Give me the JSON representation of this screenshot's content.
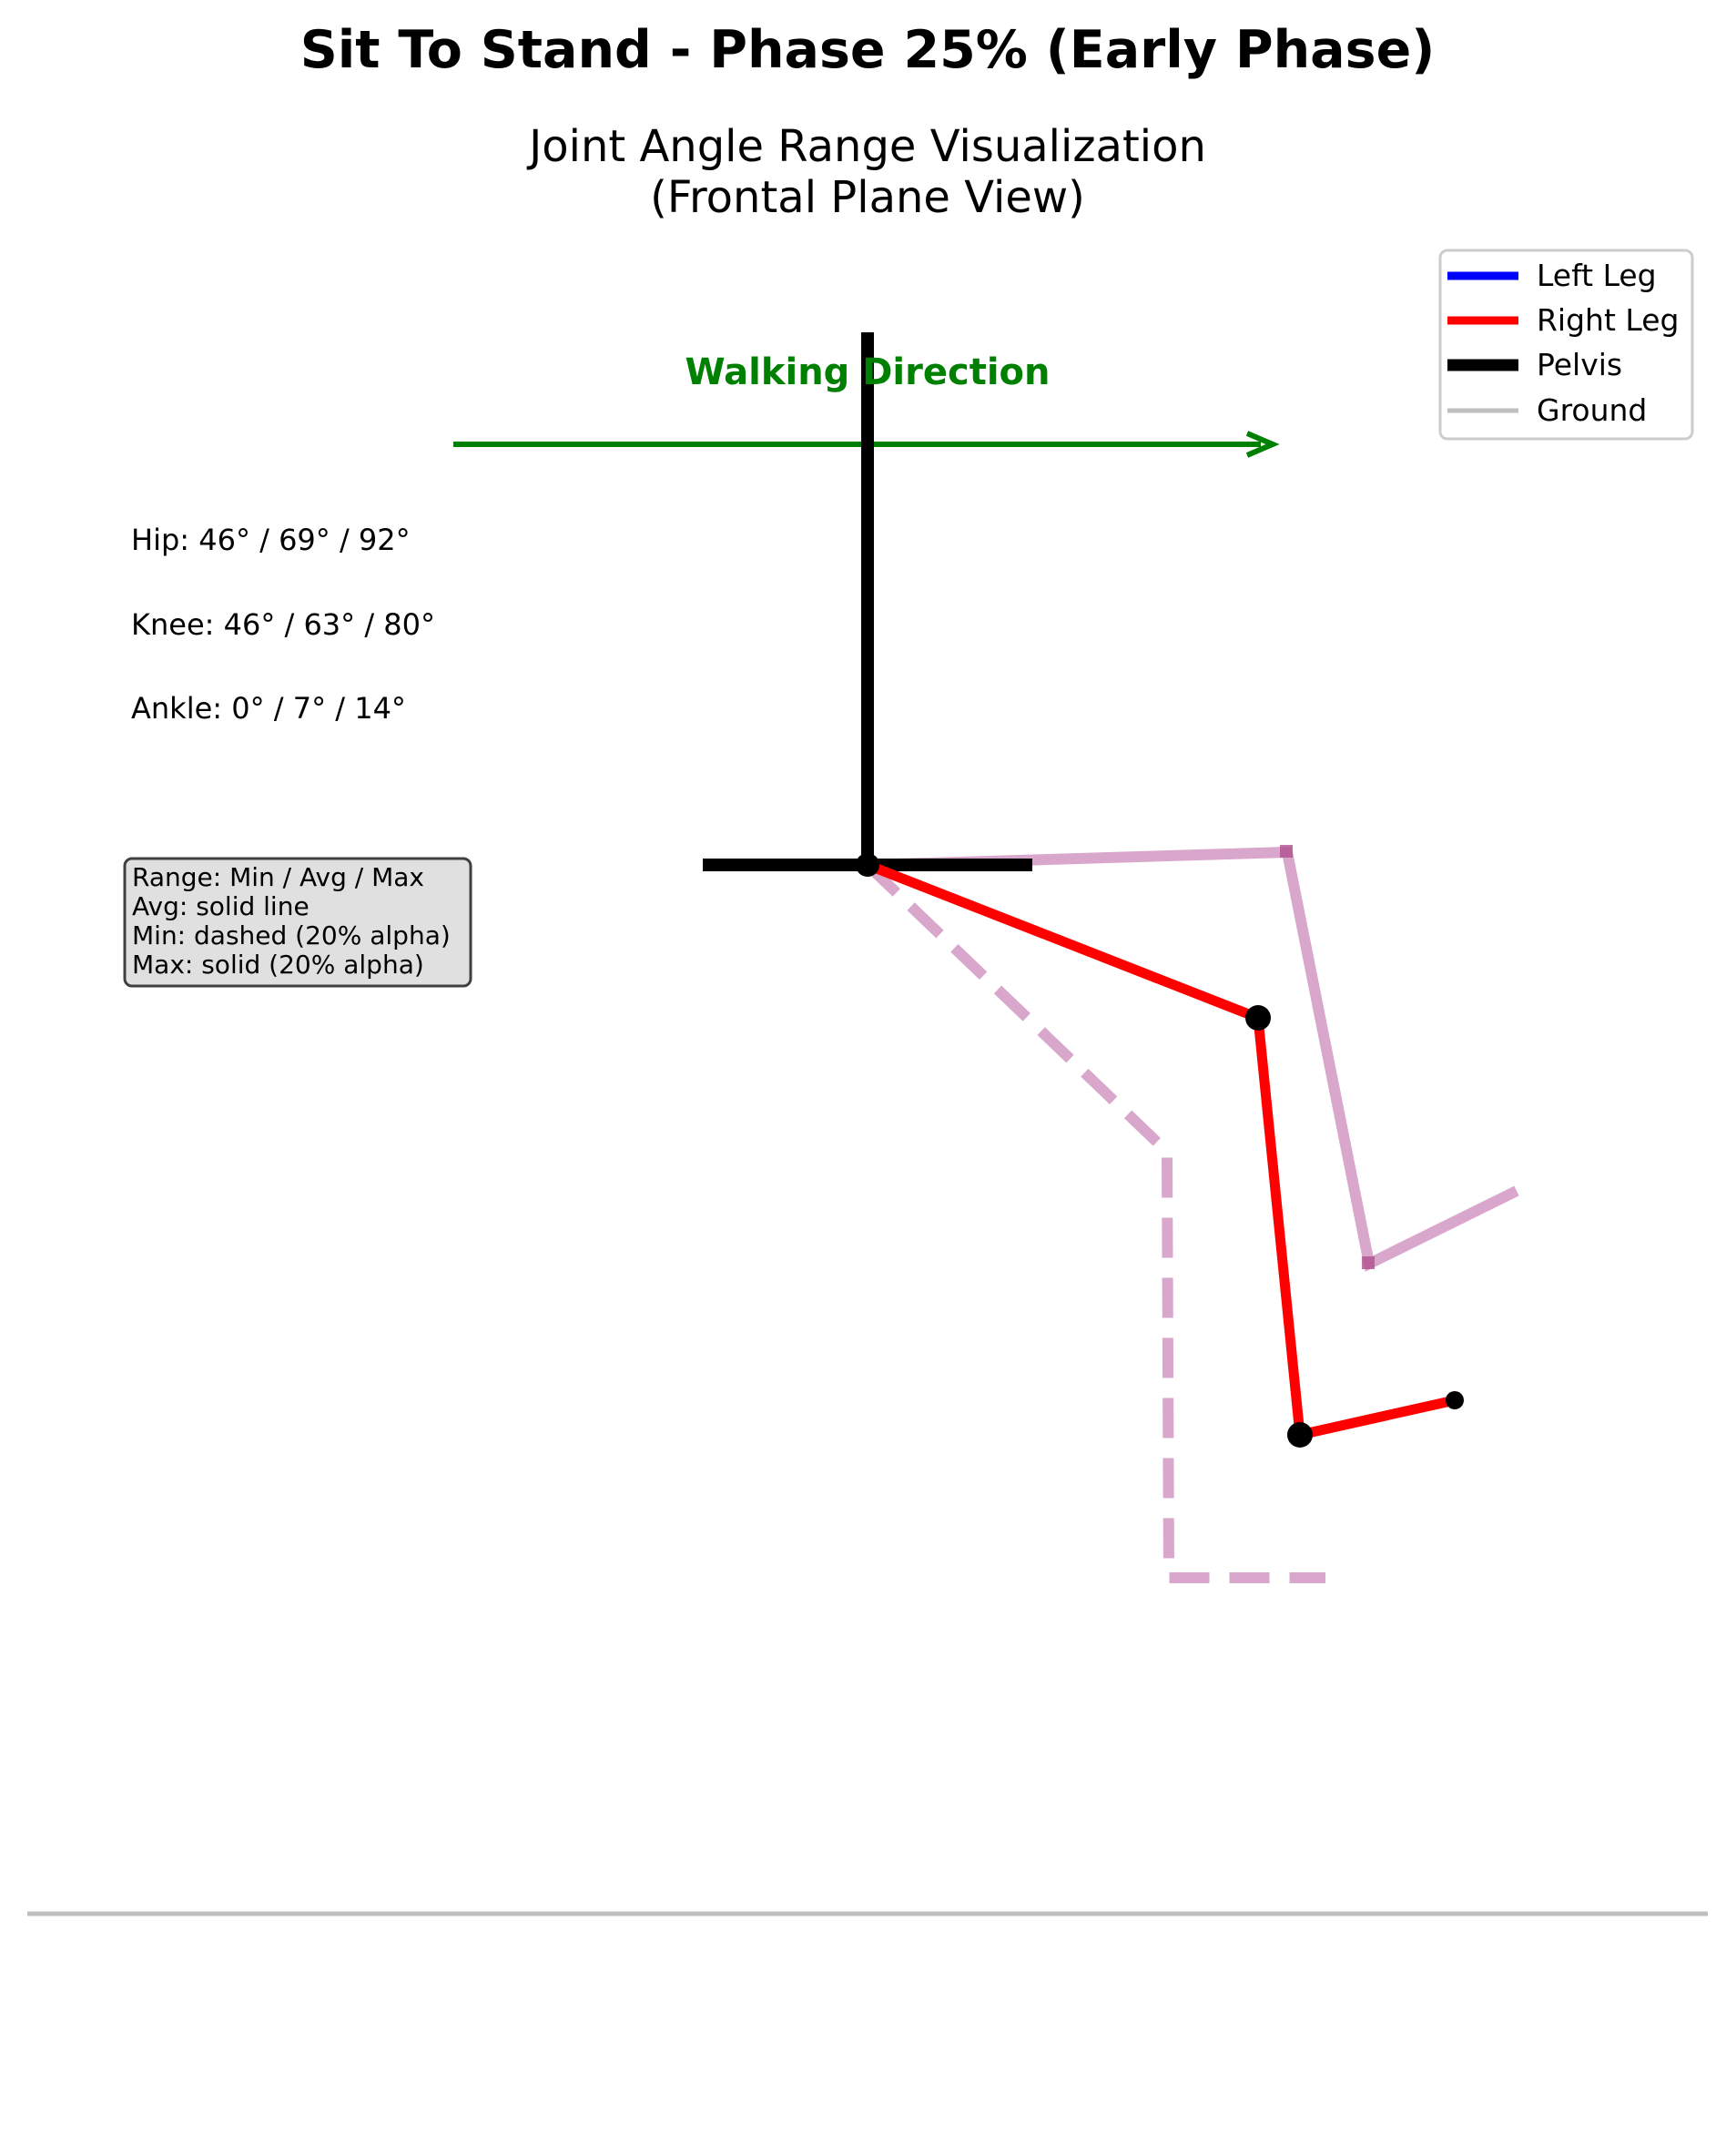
{
  "title": "Sit To Stand - Phase 25% (Early Phase)",
  "subtitle_line1": "Joint Angle Range Visualization",
  "subtitle_line2": "(Frontal Plane View)",
  "walking_direction": "Walking Direction",
  "joint_ranges": [
    {
      "label": "Hip: 46° / 69° / 92°"
    },
    {
      "label": "Knee: 46° / 63° / 80°"
    },
    {
      "label": "Ankle: 0° / 7° / 14°"
    }
  ],
  "range_box": [
    "Range: Min / Avg / Max",
    "Avg: solid line",
    "Min: dashed (20% alpha)",
    "Max: solid (20% alpha)"
  ],
  "legend": [
    {
      "label": "Left Leg",
      "color": "#0000ff"
    },
    {
      "label": "Right Leg",
      "color": "#ff0000"
    },
    {
      "label": "Pelvis",
      "color": "#000000"
    },
    {
      "label": "Ground",
      "color": "#bfbfbf"
    }
  ],
  "colors": {
    "avg_leg": "#ff0000",
    "range_overlay": "#cc88bb",
    "direction_arrow": "#008000",
    "ground": "#bfbfbf",
    "box_fill": "#e0e0e0"
  }
}
